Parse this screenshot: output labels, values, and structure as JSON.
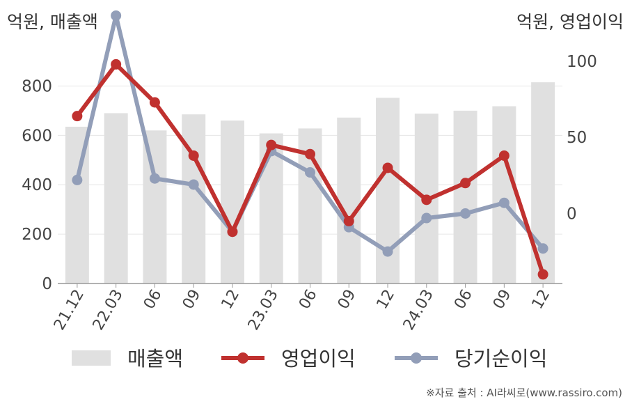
{
  "unit_left": "억원, 매출액",
  "unit_right": "억원, 영업이익",
  "source": "※자료 출처 : AI라씨로(www.rassiro.com)",
  "colors": {
    "bar": "#e0e0e0",
    "operating": "#c0312f",
    "net": "#929eb8",
    "axis": "#999999",
    "grid": "#e6e6e6"
  },
  "chart_data": {
    "type": "bar+line",
    "categories": [
      "21.12",
      "22.03",
      "06",
      "09",
      "12",
      "23.03",
      "06",
      "09",
      "12",
      "24.03",
      "06",
      "09",
      "12"
    ],
    "left_axis": {
      "ylim": [
        0,
        900
      ],
      "ticks": [
        0,
        200,
        400,
        600,
        800
      ]
    },
    "right_axis": {
      "ylim": [
        -46,
        100
      ],
      "ticks": [
        0,
        50,
        100
      ]
    },
    "series": [
      {
        "name": "매출액",
        "type": "bar",
        "axis": "left",
        "values": [
          635,
          690,
          620,
          685,
          660,
          608,
          628,
          672,
          752,
          688,
          700,
          718,
          815
        ]
      },
      {
        "name": "영업이익",
        "type": "line",
        "axis": "right",
        "values": [
          64,
          98,
          73,
          38,
          -12,
          45,
          39,
          -5,
          30,
          9,
          20,
          38,
          -40
        ]
      },
      {
        "name": "당기순이익",
        "type": "line",
        "axis": "right",
        "values": [
          22,
          130,
          23,
          19,
          -12,
          41,
          27,
          -9,
          -25,
          -3,
          0,
          7,
          -23
        ]
      }
    ]
  }
}
